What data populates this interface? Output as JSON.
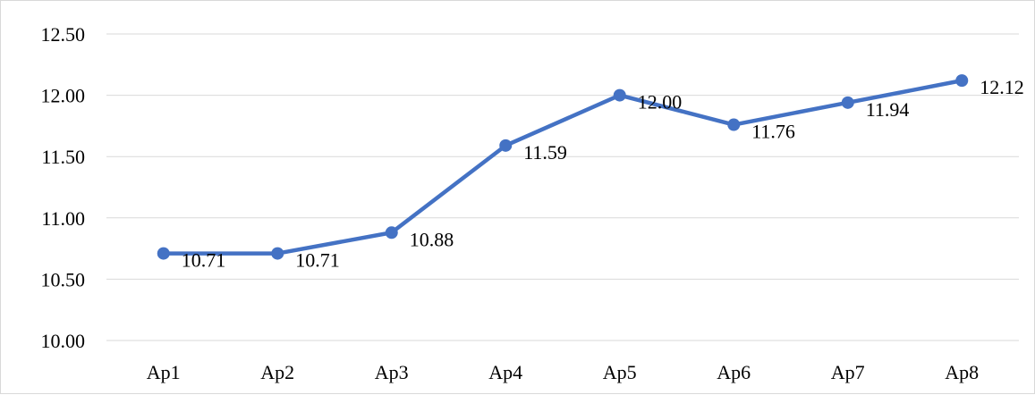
{
  "chart_data": {
    "type": "line",
    "title": "",
    "xlabel": "",
    "ylabel": "",
    "categories": [
      "Ap1",
      "Ap2",
      "Ap3",
      "Ap4",
      "Ap5",
      "Ap6",
      "Ap7",
      "Ap8"
    ],
    "series": [
      {
        "values": [
          10.71,
          10.71,
          10.88,
          11.59,
          12.0,
          11.76,
          11.94,
          12.12
        ],
        "color": "#4472c4",
        "marker": "circle",
        "data_labels": [
          "10.71",
          "10.71",
          "10.88",
          "11.59",
          "12.00",
          "11.76",
          "11.94",
          "12.12"
        ]
      }
    ],
    "ylim": [
      10.0,
      12.5
    ],
    "yticks": [
      10.0,
      10.5,
      11.0,
      11.5,
      12.0,
      12.5
    ],
    "ytick_labels": [
      "10.00",
      "10.50",
      "11.00",
      "11.50",
      "12.00",
      "12.50"
    ],
    "grid": true,
    "gridline_color": "#d9d9d9",
    "legend": "none"
  }
}
